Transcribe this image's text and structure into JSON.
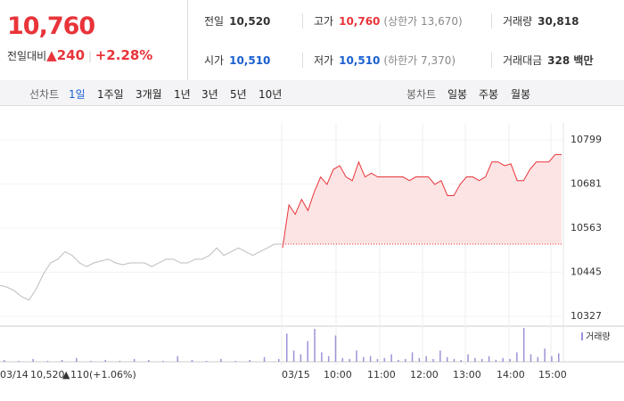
{
  "header": {
    "price": "10,760",
    "change_label": "전일대비",
    "change_arrow": "▲",
    "change": "240",
    "change_pct": "+2.28%"
  },
  "stats": [
    [
      {
        "label": "전일",
        "value": "10,520"
      },
      {
        "label": "고가",
        "value": "10,760",
        "note": "(상한가 13,670)"
      },
      {
        "label": "거래량",
        "value": "30,818"
      }
    ],
    [
      {
        "label": "시가",
        "value": "10,510"
      },
      {
        "label": "저가",
        "value": "10,510",
        "note": "(하한가 7,370)"
      },
      {
        "label": "거래대금",
        "value": "328 백만"
      }
    ]
  ],
  "tabs": {
    "line_label": "선차트",
    "line_periods": [
      "1일",
      "1주일",
      "3개월",
      "1년",
      "3년",
      "5년",
      "10년"
    ],
    "candle_label": "봉차트",
    "candle_periods": [
      "일봉",
      "주봉",
      "월봉"
    ]
  },
  "chart_data": {
    "type": "line",
    "ylim": [
      10327,
      10799
    ],
    "yticks": [
      10327,
      10445,
      10563,
      10681,
      10799
    ],
    "baseline": 10520,
    "x_labels": [
      "03/14",
      "03/15",
      "10:00",
      "11:00",
      "12:00",
      "13:00",
      "14:00",
      "15:00"
    ],
    "prev_summary": {
      "close": "10,520",
      "arrow": "▲",
      "change": "110",
      "pct": "(+1.06%)"
    },
    "series": [
      {
        "color": "#bdbdbd",
        "values": [
          10410,
          10405,
          10395,
          10380,
          10370,
          10400,
          10440,
          10470,
          10480,
          10500,
          10490,
          10470,
          10460,
          10470,
          10475,
          10480,
          10470,
          10465,
          10470,
          10470,
          10470,
          10460,
          10470,
          10480,
          10480,
          10470,
          10470,
          10480,
          10480,
          10490,
          10510,
          10490,
          10500,
          10510,
          10500,
          10490,
          10500,
          10510,
          10520,
          10520
        ]
      },
      {
        "color": "#e8343a",
        "values": [
          10510,
          10625,
          10600,
          10640,
          10610,
          10660,
          10700,
          10680,
          10720,
          10730,
          10700,
          10690,
          10740,
          10700,
          10710,
          10700,
          10700,
          10700,
          10700,
          10700,
          10690,
          10700,
          10700,
          10700,
          10680,
          10690,
          10650,
          10650,
          10680,
          10700,
          10700,
          10690,
          10700,
          10740,
          10740,
          10730,
          10735,
          10690,
          10690,
          10720,
          10740,
          10740,
          10740,
          10760,
          10760
        ]
      }
    ],
    "volume": {
      "name": "거래량",
      "color": "#9e92d6",
      "prev": [
        2,
        1,
        3,
        1,
        2,
        4,
        1,
        2,
        1,
        3,
        2,
        1,
        6,
        2,
        1,
        3,
        1,
        2,
        5,
        3
      ],
      "today": [
        30,
        12,
        8,
        22,
        35,
        10,
        6,
        28,
        4,
        3,
        12,
        5,
        6,
        3,
        4,
        8,
        2,
        3,
        10,
        4,
        6,
        3,
        12,
        5,
        3,
        2,
        8,
        4,
        3,
        6,
        2,
        4,
        3,
        10,
        36,
        8,
        5,
        14,
        6,
        9
      ]
    }
  }
}
